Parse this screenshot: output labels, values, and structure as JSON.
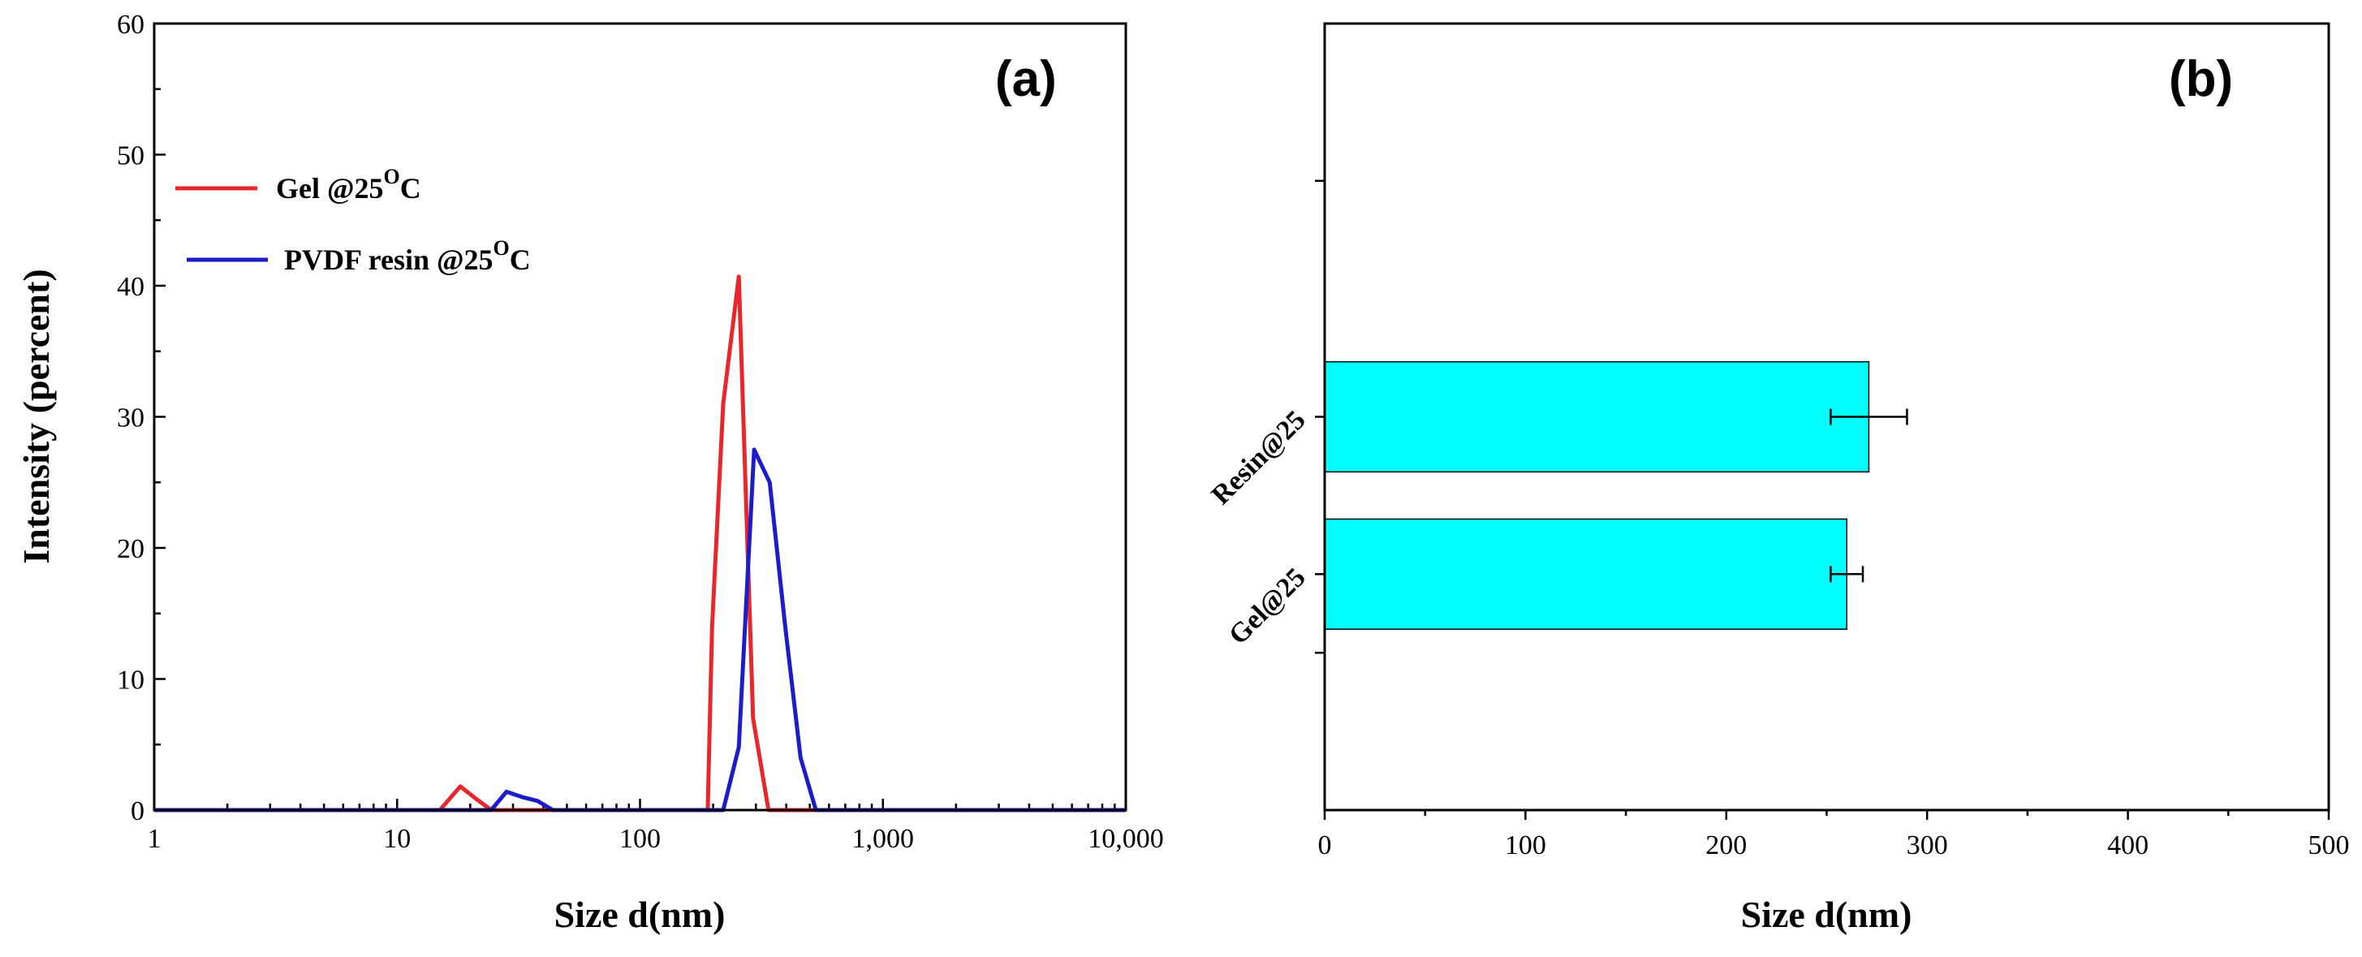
{
  "chart_data": [
    {
      "type": "line",
      "panel_label": "(a)",
      "xscale": "log",
      "xlim": [
        1,
        10000
      ],
      "ylim": [
        0,
        60
      ],
      "xlabel": "Size d(nm)",
      "ylabel": "Intensity (percent)",
      "xticks": [
        1,
        10,
        100,
        1000,
        10000
      ],
      "xtick_labels": [
        "1",
        "10",
        "100",
        "1,000",
        "10,000"
      ],
      "yticks": [
        0,
        10,
        20,
        30,
        40,
        50,
        60
      ],
      "ytick_labels": [
        "0",
        "10",
        "20",
        "30",
        "40",
        "50",
        "60"
      ],
      "legend_position": "top-left",
      "series": [
        {
          "name": "Gel @25",
          "superscript": "O",
          "unit": "C",
          "color": "#e8262b",
          "x": [
            1,
            15,
            18.2,
            21.0,
            24.4,
            28.2,
            33,
            190,
            198,
            220,
            255,
            292,
            338,
            390,
            10000
          ],
          "y": [
            0,
            0,
            1.8,
            0.9,
            0,
            0,
            0,
            0,
            14,
            31,
            40.7,
            7,
            0,
            0,
            0
          ]
        },
        {
          "name": "PVDF resin @25",
          "superscript": "O",
          "unit": "C",
          "color": "#1c1cc8",
          "x": [
            1,
            24.4,
            28.2,
            32.7,
            37.8,
            43.8,
            50,
            210,
            220,
            255,
            295,
            342,
            396,
            458,
            530,
            600,
            10000
          ],
          "y": [
            0,
            0,
            1.4,
            1.0,
            0.7,
            0,
            0,
            0,
            0,
            4.8,
            27.5,
            25,
            14,
            4,
            0,
            0,
            0
          ]
        }
      ]
    },
    {
      "type": "bar",
      "orientation": "horizontal",
      "panel_label": "(b)",
      "xlim": [
        0,
        500
      ],
      "xlabel": "Size d(nm)",
      "ylabel": "",
      "xticks": [
        0,
        100,
        200,
        300,
        400,
        500
      ],
      "xtick_labels": [
        "0",
        "100",
        "200",
        "300",
        "400",
        "500"
      ],
      "categories": [
        "Gel@25",
        "Resin@25"
      ],
      "values": [
        260,
        271
      ],
      "errors": [
        8,
        19
      ],
      "bar_color": "#00ffff"
    }
  ]
}
